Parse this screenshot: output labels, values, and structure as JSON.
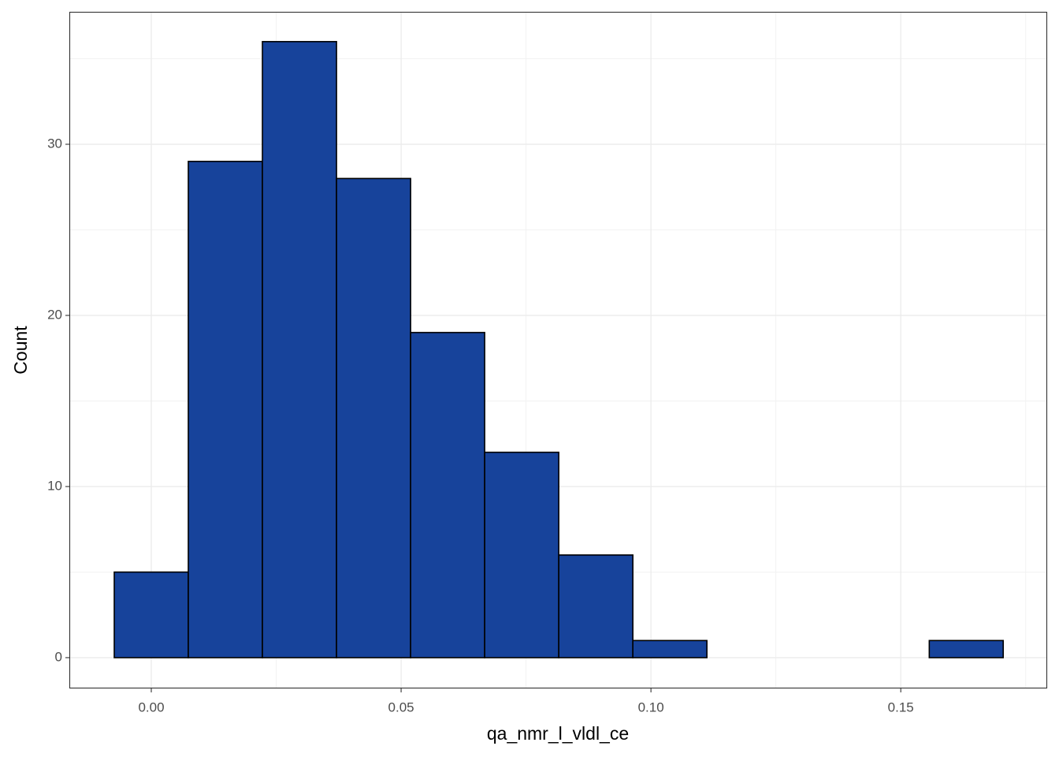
{
  "chart_data": {
    "type": "histogram",
    "x_label": "qa_nmr_l_vldl_ce",
    "y_label": "Count",
    "bins": [
      -0.00741,
      0.00741,
      0.02224,
      0.03707,
      0.0519,
      0.06672,
      0.08155,
      0.09638,
      0.1112,
      0.126,
      0.1409,
      0.1557,
      0.1705
    ],
    "counts": [
      5,
      29,
      36,
      28,
      19,
      12,
      6,
      1,
      0,
      0,
      0,
      1
    ],
    "color": "#17439b",
    "edge_color": "#000000",
    "xlim": [
      -0.0164,
      0.1793
    ],
    "ylim": [
      -1.8,
      37.74
    ],
    "xticks": [
      {
        "value": 0,
        "label": "0.00"
      },
      0.05,
      {
        "value": 0.1,
        "label": "0.10"
      },
      0.15
    ],
    "yticks": [
      0,
      10,
      20,
      30
    ],
    "grid": true
  }
}
